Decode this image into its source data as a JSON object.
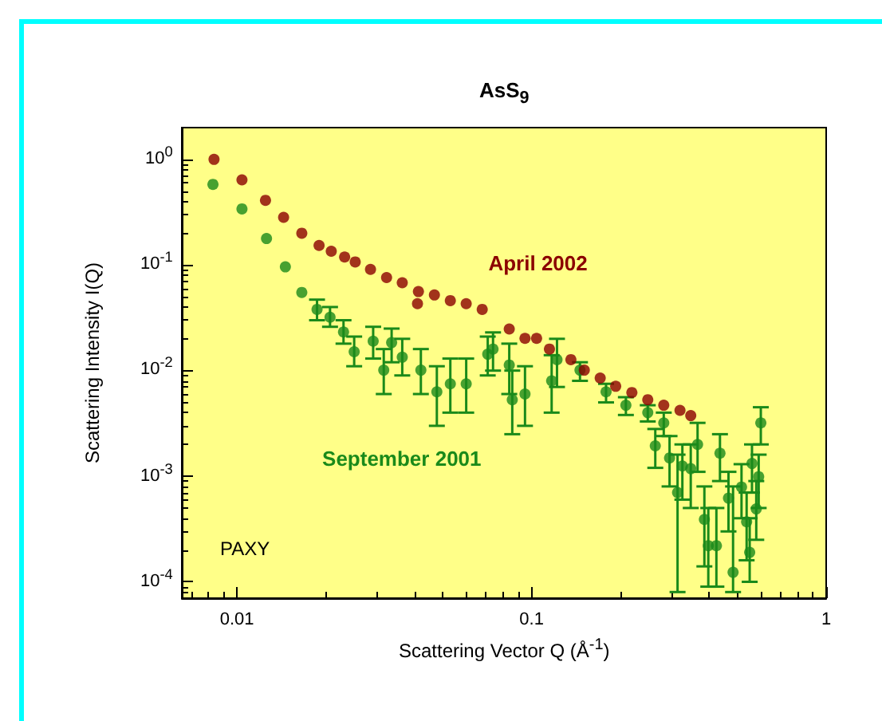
{
  "chart_data": {
    "type": "scatter",
    "title": "AsS$_{9}$",
    "xlabel": "Scattering Vector Q (Å$^{-1}$)",
    "ylabel": "Scattering Intensity I(Q)",
    "log": "xy",
    "grid": false,
    "legend": false,
    "marker": "circle",
    "xlim": [
      0.0065,
      1
    ],
    "xticks": [
      0.01,
      0.1,
      1
    ],
    "ylim": [
      7e-05,
      2
    ],
    "yticks": [
      {
        "value": 1,
        "label": "10$^{0}$"
      },
      {
        "value": 0.1,
        "label": "10$^{-1}$"
      },
      {
        "value": 0.01,
        "label": "10$^{-2}$"
      },
      {
        "value": 0.001,
        "label": "10$^{-3}$"
      },
      {
        "value": 0.0001,
        "label": "10$^{-4}$"
      }
    ],
    "annotations": [
      "PAXY"
    ],
    "series": [
      {
        "name": "April 2002",
        "color": "#8b0000",
        "x": [
          0.00836,
          0.0104,
          0.0125,
          0.0144,
          0.0166,
          0.019,
          0.0209,
          0.0232,
          0.0252,
          0.0284,
          0.0322,
          0.0364,
          0.0413,
          0.041,
          0.0468,
          0.053,
          0.06,
          0.068,
          0.084,
          0.095,
          0.104,
          0.115,
          0.136,
          0.151,
          0.171,
          0.193,
          0.219,
          0.248,
          0.281,
          0.319,
          0.347
        ],
        "values": [
          1.0,
          0.64,
          0.41,
          0.283,
          0.2,
          0.153,
          0.135,
          0.119,
          0.107,
          0.091,
          0.076,
          0.068,
          0.056,
          0.043,
          0.052,
          0.046,
          0.043,
          0.038,
          0.0248,
          0.0202,
          0.0202,
          0.016,
          0.0127,
          0.0101,
          0.0085,
          0.0071,
          0.0062,
          0.0053,
          0.0047,
          0.0042,
          0.00375
        ]
      },
      {
        "name": "September 2001",
        "color": "#1a8a1a",
        "x": [
          0.00829,
          0.0104,
          0.0126,
          0.0146,
          0.0166,
          0.0187,
          0.0207,
          0.023,
          0.025,
          0.029,
          0.0315,
          0.0335,
          0.0364,
          0.0421,
          0.0477,
          0.053,
          0.06,
          0.071,
          0.074,
          0.084,
          0.086,
          0.095,
          0.117,
          0.122,
          0.146,
          0.179,
          0.209,
          0.248,
          0.281,
          0.263,
          0.294,
          0.313,
          0.325,
          0.347,
          0.366,
          0.386,
          0.398,
          0.424,
          0.436,
          0.466,
          0.483,
          0.516,
          0.537,
          0.55,
          0.56,
          0.579,
          0.59,
          0.6
        ],
        "values": [
          0.58,
          0.34,
          0.178,
          0.096,
          0.055,
          0.038,
          0.032,
          0.0232,
          0.0151,
          0.019,
          0.0101,
          0.0184,
          0.0134,
          0.0101,
          0.0063,
          0.0075,
          0.0075,
          0.0143,
          0.016,
          0.0113,
          0.0053,
          0.006,
          0.008,
          0.0127,
          0.0101,
          0.0063,
          0.0047,
          0.004,
          0.0032,
          0.00194,
          0.00149,
          0.0007,
          0.00125,
          0.00118,
          0.002,
          0.00039,
          0.00022,
          0.00022,
          0.00165,
          0.00062,
          0.000123,
          0.00079,
          0.00037,
          0.00019,
          0.00132,
          0.00049,
          0.00099,
          0.0032
        ],
        "errors": [
          null,
          null,
          null,
          null,
          null,
          [
            0.03,
            0.047
          ],
          [
            0.026,
            0.04
          ],
          [
            0.018,
            0.03
          ],
          [
            0.011,
            0.021
          ],
          [
            0.013,
            0.026
          ],
          [
            0.006,
            0.016
          ],
          [
            0.012,
            0.025
          ],
          [
            0.009,
            0.02
          ],
          [
            0.006,
            0.016
          ],
          [
            0.003,
            0.011
          ],
          [
            0.004,
            0.013
          ],
          [
            0.004,
            0.013
          ],
          [
            0.009,
            0.021
          ],
          [
            0.01,
            0.023
          ],
          [
            0.006,
            0.018
          ],
          [
            0.0025,
            0.01
          ],
          [
            0.003,
            0.011
          ],
          [
            0.004,
            0.014
          ],
          [
            0.007,
            0.02
          ],
          [
            0.008,
            0.012
          ],
          [
            0.005,
            0.0075
          ],
          [
            0.0038,
            0.0056
          ],
          [
            0.0033,
            0.0047
          ],
          [
            0.0024,
            0.004
          ],
          [
            0.0012,
            0.0028
          ],
          [
            0.0008,
            0.0024
          ],
          [
            8e-05,
            0.0016
          ],
          [
            0.0006,
            0.002
          ],
          [
            0.0005,
            0.002
          ],
          [
            0.0011,
            0.0032
          ],
          [
            0.00014,
            0.0008
          ],
          [
            9e-05,
            0.0005
          ],
          [
            9e-05,
            0.0005
          ],
          [
            0.0009,
            0.0025
          ],
          [
            0.0003,
            0.0011
          ],
          [
            8e-05,
            0.0008
          ],
          [
            0.0004,
            0.0013
          ],
          [
            0.00016,
            0.0007
          ],
          [
            0.0001,
            0.0004
          ],
          [
            0.0007,
            0.002
          ],
          [
            0.00025,
            0.0009
          ],
          [
            0.0005,
            0.0016
          ],
          [
            0.002,
            0.0045
          ]
        ]
      }
    ]
  }
}
